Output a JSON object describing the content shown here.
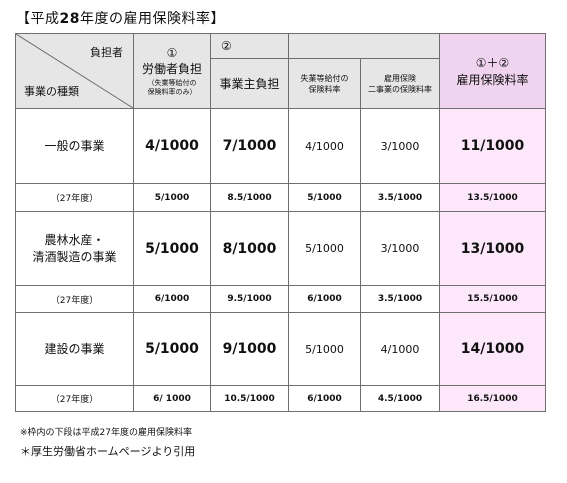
{
  "title": {
    "prefix": "【平成",
    "year": "28",
    "suffix": "年度の雇用保険料率】"
  },
  "header": {
    "corner_top": "負担者",
    "corner_bottom": "事業の種類",
    "worker_circle": "①",
    "worker_label": "労働者負担",
    "worker_note_line1": "（失業等給付の",
    "worker_note_line2": "保険料率のみ）",
    "employer_circle": "②",
    "employer_label": "事業主負担",
    "unemployment_line1": "失業等給付の",
    "unemployment_line2": "保険料率",
    "two_services_line1": "雇用保険",
    "two_services_line2": "二事業の保険料率",
    "total_circle": "①＋②",
    "total_label": "雇用保険料率"
  },
  "rows": [
    {
      "category_line1": "一般の事業",
      "category_line2": "",
      "current": {
        "worker": "4/1000",
        "employer": "7/1000",
        "unemployment": "4/1000",
        "two_services": "3/1000",
        "total": "11/1000"
      },
      "prev_label": "（27年度）",
      "previous": {
        "worker": "5/1000",
        "employer": "8.5/1000",
        "unemployment": "5/1000",
        "two_services": "3.5/1000",
        "total": "13.5/1000"
      }
    },
    {
      "category_line1": "農林水産・",
      "category_line2": "清酒製造の事業",
      "current": {
        "worker": "5/1000",
        "employer": "8/1000",
        "unemployment": "5/1000",
        "two_services": "3/1000",
        "total": "13/1000"
      },
      "prev_label": "（27年度）",
      "previous": {
        "worker": "6/1000",
        "employer": "9.5/1000",
        "unemployment": "6/1000",
        "two_services": "3.5/1000",
        "total": "15.5/1000"
      }
    },
    {
      "category_line1": "建設の事業",
      "category_line2": "",
      "current": {
        "worker": "5/1000",
        "employer": "9/1000",
        "unemployment": "5/1000",
        "two_services": "4/1000",
        "total": "14/1000"
      },
      "prev_label": "（27年度）",
      "previous": {
        "worker": "6/ 1000",
        "employer": "10.5/1000",
        "unemployment": "6/1000",
        "two_services": "4.5/1000",
        "total": "16.5/1000"
      }
    }
  ],
  "footnote": "※枠内の下段は平成27年度の雇用保険料率",
  "source": "＊厚生労働省ホームページより引用"
}
